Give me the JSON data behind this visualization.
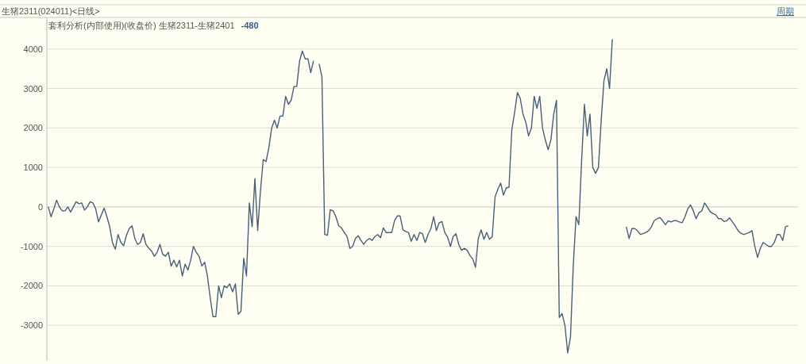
{
  "chart_data": {
    "type": "line",
    "title": "生猪2311(024011)<日线>",
    "subtitle": "套利分析(内部使用)(收盘价) 生猪2311-生猪2401",
    "annotations": [
      "-480",
      "周期"
    ],
    "categories": [
      null,
      null,
      null,
      null,
      null,
      null,
      null,
      null,
      null,
      null,
      null,
      null,
      null,
      null,
      null,
      null,
      null,
      null,
      null,
      null,
      null,
      null,
      null,
      null,
      null,
      null,
      null,
      null,
      null,
      null,
      null,
      null,
      null,
      null,
      null,
      null,
      null,
      null,
      null,
      null,
      null,
      null,
      null,
      null,
      null,
      null,
      null,
      null,
      null,
      null,
      null,
      null,
      null,
      null,
      null,
      null,
      null,
      null,
      null,
      null,
      null,
      null,
      null,
      null,
      null,
      null,
      null,
      null,
      null,
      null,
      null,
      null,
      null,
      null,
      null,
      null,
      null,
      null,
      null,
      null,
      null,
      null,
      null,
      null,
      null,
      null,
      null,
      null,
      null,
      null,
      null,
      null,
      null,
      null,
      null,
      null,
      null,
      null,
      null,
      null,
      null,
      null,
      null,
      null,
      null,
      null,
      null,
      null,
      null,
      null,
      null,
      null,
      null,
      null,
      null,
      null,
      null,
      null,
      null,
      null,
      null,
      null,
      null,
      null,
      null,
      null,
      null,
      null,
      null,
      null,
      null,
      null,
      null,
      null,
      null,
      null,
      null,
      null,
      null,
      null,
      null,
      null,
      null,
      null,
      null,
      null,
      null,
      null,
      null,
      null,
      null,
      null,
      null,
      null,
      null,
      null,
      null,
      null,
      null,
      null,
      null,
      null,
      null,
      null,
      null,
      null,
      null,
      null,
      null,
      null,
      null,
      null,
      null,
      null,
      null,
      null,
      null,
      null,
      null,
      null,
      null,
      null,
      null,
      null,
      null,
      null,
      null,
      null,
      null,
      null,
      null,
      null,
      null,
      null,
      null,
      null,
      null,
      null,
      null,
      null,
      null,
      null,
      null,
      null,
      null,
      null,
      null,
      null,
      null,
      null,
      null,
      null,
      null,
      null,
      null,
      null,
      null,
      null,
      null,
      null,
      null,
      null,
      null,
      null,
      null,
      null,
      null,
      null,
      null,
      null,
      null,
      null,
      null,
      null,
      null,
      null,
      null,
      null,
      null,
      null,
      null,
      null,
      null,
      null,
      null,
      null,
      null,
      null,
      null,
      null,
      null,
      null,
      null,
      null,
      null,
      null,
      null,
      null,
      null,
      null,
      null,
      null,
      null,
      null,
      null,
      null,
      null,
      null,
      null
    ],
    "ylim": [
      -3900,
      4800
    ],
    "yticks": [
      -3000,
      -2000,
      -1000,
      0,
      1000,
      2000,
      3000,
      4000
    ],
    "tick_labels": "y",
    "grid": "y",
    "marker": "none",
    "line_style": "solid",
    "series": [
      {
        "color": "#4a5f78",
        "values": [
          0,
          -250,
          -50,
          170,
          0,
          -100,
          -100,
          0,
          -130,
          0,
          130,
          80,
          100,
          -80,
          0,
          130,
          100,
          -50,
          -380,
          -200,
          -30,
          -250,
          -500,
          -900,
          -1070,
          -700,
          -900,
          -980,
          -720,
          -550,
          -480,
          -800,
          -950,
          -900,
          -680,
          -950,
          -1050,
          -1120,
          -1250,
          -1150,
          -950,
          -1200,
          -1250,
          -1150,
          -1500,
          -1350,
          -1520,
          -1350,
          -1750,
          -1450,
          -1600,
          -1350,
          -1000,
          -1150,
          -1250,
          -1500,
          -1400,
          -1750,
          -2300,
          -2780,
          -2780,
          -2000,
          -2300,
          -2000,
          -2050,
          -1950,
          -2150,
          -1950,
          -2720,
          -2650,
          -1300,
          -1750,
          100,
          -500,
          720,
          -600,
          400,
          1200,
          1150,
          1500,
          2000,
          2200,
          2000,
          2300,
          2300,
          2800,
          2600,
          2700,
          3050,
          3050,
          3700,
          3950,
          3750,
          3750,
          3400,
          3700,
          null,
          3620,
          3300,
          -700,
          -720,
          -70,
          -100,
          -250,
          -480,
          -530,
          -650,
          -750,
          -1050,
          -1000,
          -800,
          -730,
          -850,
          -950,
          -850,
          -800,
          -850,
          -750,
          -700,
          -780,
          -530,
          -650,
          -650,
          -650,
          -350,
          -230,
          -230,
          -580,
          -620,
          -650,
          -870,
          -700,
          -850,
          -650,
          -680,
          -900,
          -700,
          -550,
          -250,
          -600,
          -400,
          -370,
          -650,
          -770,
          -1000,
          -750,
          -680,
          -950,
          -1100,
          -1050,
          -1100,
          -1230,
          -1320,
          -1530,
          -800,
          -580,
          -820,
          -650,
          -820,
          -750,
          250,
          450,
          600,
          300,
          480,
          500,
          1950,
          2400,
          2900,
          2750,
          2350,
          2150,
          1800,
          2000,
          2800,
          2500,
          2800,
          2000,
          1700,
          1450,
          1700,
          2350,
          2700,
          -2800,
          -2700,
          -3000,
          -3700,
          -3300,
          -1500,
          -250,
          -450,
          1200,
          2600,
          1800,
          2350,
          1000,
          850,
          1000,
          2200,
          3200,
          3500,
          3000,
          4250,
          null,
          null,
          null,
          null,
          -500,
          -800,
          -550,
          -550,
          -600,
          -700,
          -680,
          -650,
          -600,
          -500,
          -350,
          -300,
          -270,
          -350,
          -450,
          -350,
          -380,
          -350,
          -350,
          -380,
          -400,
          -250,
          -50,
          50,
          -100,
          -300,
          -150,
          -100,
          100,
          0,
          -120,
          -170,
          -200,
          -300,
          -300,
          -370,
          -350,
          -280,
          -380,
          -480,
          -600,
          -670,
          -700,
          -680,
          -650,
          -600,
          -1000,
          -1280,
          -1050,
          -900,
          -950,
          -1000,
          -1000,
          -900,
          -700,
          -700,
          -850,
          -500,
          -480,
          null,
          null,
          null
        ]
      }
    ]
  }
}
